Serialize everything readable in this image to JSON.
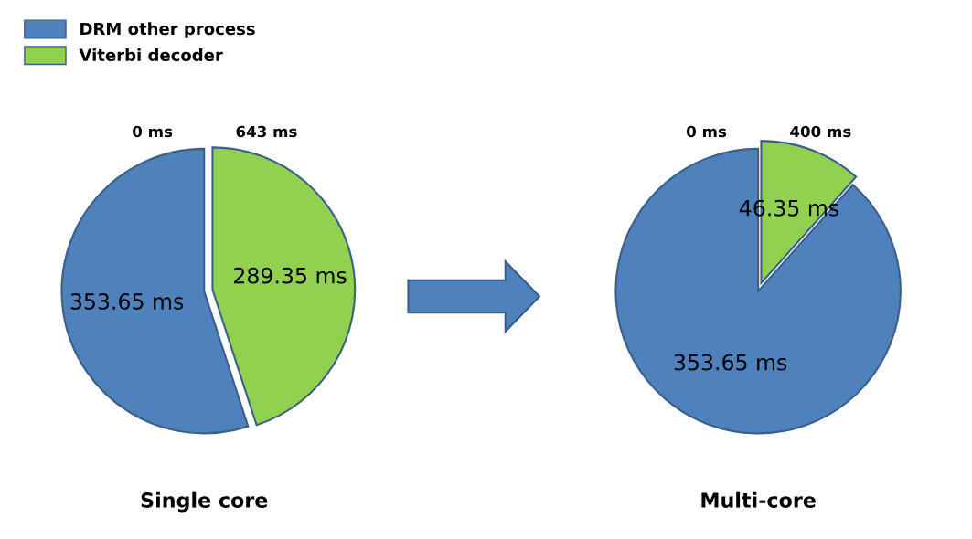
{
  "chart_data": [
    {
      "type": "pie",
      "title": "Single core",
      "categories": [
        "DRM other process",
        "Viterbi decoder"
      ],
      "values": [
        353.65,
        289.35
      ],
      "value_labels": [
        "353.65 ms",
        "289.35 ms"
      ],
      "colors": [
        "#4f81bd",
        "#92d050"
      ],
      "legend": "top left",
      "annotations": [
        "0 ms",
        "643 ms"
      ]
    },
    {
      "type": "pie",
      "title": "Multi-core",
      "categories": [
        null,
        null
      ],
      "values": [
        353.65,
        46.35
      ],
      "value_labels": [
        "353.65 ms",
        "46.35 ms"
      ],
      "colors": [
        "#4f81bd",
        "#92d050"
      ],
      "annotations": [
        "0 ms",
        "400 ms"
      ]
    }
  ]
}
